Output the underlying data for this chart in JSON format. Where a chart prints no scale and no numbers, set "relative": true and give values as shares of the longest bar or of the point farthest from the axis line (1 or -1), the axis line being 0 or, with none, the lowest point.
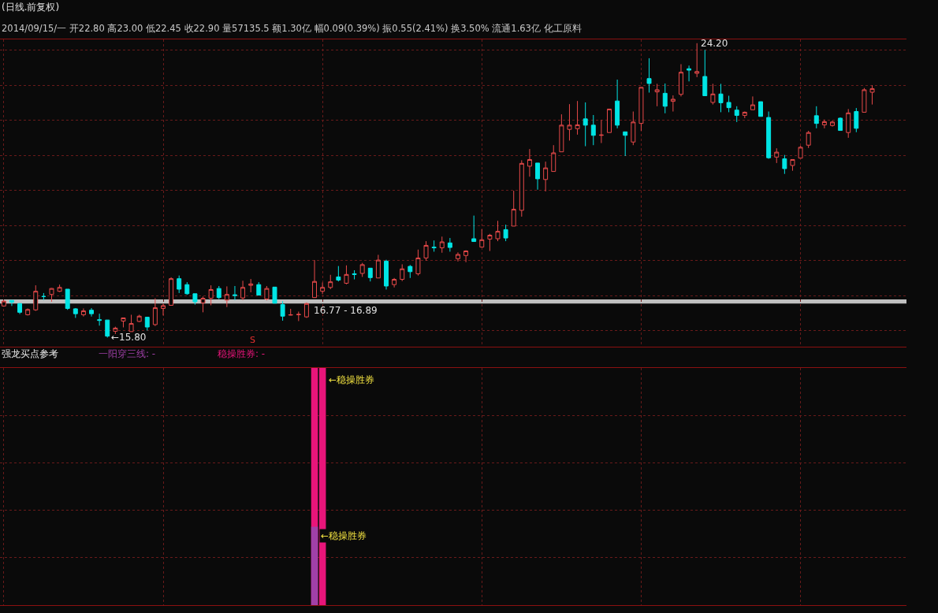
{
  "chart_data": [
    {
      "type": "candlestick",
      "title": "(日线.前复权)",
      "subtitle": "2014/09/15/一 开22.80 高23.00 低22.45 收22.90 量57135.5 额1.30亿 幅0.09(0.39%) 振0.55(2.41%) 换3.50% 流通1.63亿 化工原料",
      "categories": [
        null,
        null,
        null,
        null,
        null,
        null,
        null,
        null,
        null,
        null,
        null,
        null,
        null,
        null,
        null,
        null,
        null,
        null,
        null,
        null,
        null,
        null,
        null,
        null,
        null,
        null,
        null,
        null,
        null,
        null,
        null,
        null,
        null,
        null,
        null,
        null,
        null,
        null,
        null,
        null,
        null,
        null,
        null,
        null,
        null,
        null,
        null,
        null,
        null,
        null,
        null,
        null,
        null,
        null,
        null,
        null,
        null,
        null,
        null,
        null,
        null,
        null,
        null,
        null,
        null,
        null,
        null,
        null,
        null,
        null,
        null,
        null,
        null,
        null,
        null,
        null,
        null,
        null,
        null,
        null,
        null,
        null,
        null,
        null,
        null,
        null,
        null,
        null,
        null,
        null,
        null,
        null,
        null,
        null,
        null,
        null,
        null,
        null,
        null,
        null,
        null,
        null,
        null,
        null,
        null,
        null,
        null,
        null,
        null,
        null
      ],
      "ohlc": [
        [
          16.7,
          16.86,
          16.68,
          16.84
        ],
        [
          16.86,
          16.86,
          16.7,
          16.81
        ],
        [
          16.77,
          16.78,
          16.47,
          16.52
        ],
        [
          16.45,
          16.63,
          16.43,
          16.6
        ],
        [
          16.59,
          17.29,
          16.56,
          17.12
        ],
        [
          16.97,
          17.07,
          16.87,
          16.97
        ],
        [
          17.03,
          17.21,
          16.82,
          17.2
        ],
        [
          17.12,
          17.31,
          17.1,
          17.23
        ],
        [
          17.18,
          17.18,
          16.59,
          16.63
        ],
        [
          16.62,
          16.64,
          16.36,
          16.48
        ],
        [
          16.45,
          16.63,
          16.4,
          16.56
        ],
        [
          16.58,
          16.64,
          16.4,
          16.48
        ],
        [
          16.31,
          16.48,
          16.14,
          16.29
        ],
        [
          16.3,
          16.3,
          15.8,
          15.84
        ],
        [
          15.98,
          16.11,
          15.9,
          16.07
        ],
        [
          16.27,
          16.36,
          16.09,
          16.36
        ],
        [
          15.97,
          16.45,
          15.97,
          16.2
        ],
        [
          16.26,
          16.45,
          16.24,
          16.41
        ],
        [
          16.38,
          16.38,
          16.0,
          16.1
        ],
        [
          16.17,
          16.92,
          16.13,
          16.65
        ],
        [
          16.63,
          16.77,
          16.43,
          16.71
        ],
        [
          16.72,
          17.52,
          16.72,
          17.48
        ],
        [
          17.48,
          17.57,
          17.07,
          17.18
        ],
        [
          17.31,
          17.38,
          17.02,
          17.05
        ],
        [
          17.05,
          17.05,
          16.74,
          16.82
        ],
        [
          16.79,
          16.97,
          16.52,
          16.92
        ],
        [
          16.92,
          17.29,
          16.72,
          17.17
        ],
        [
          17.2,
          17.27,
          16.9,
          16.94
        ],
        [
          16.87,
          17.26,
          16.67,
          17.03
        ],
        [
          17.02,
          17.27,
          16.87,
          17.0
        ],
        [
          16.93,
          17.42,
          16.87,
          17.23
        ],
        [
          17.29,
          17.47,
          17.09,
          17.33
        ],
        [
          17.31,
          17.38,
          17.01,
          17.01
        ],
        [
          16.9,
          17.27,
          16.86,
          17.2
        ],
        [
          17.24,
          17.24,
          16.78,
          16.78
        ],
        [
          16.74,
          16.84,
          16.28,
          16.41
        ],
        [
          16.44,
          16.62,
          16.43,
          16.45
        ],
        [
          16.45,
          16.54,
          16.27,
          16.46
        ],
        [
          16.39,
          16.8,
          16.36,
          16.77
        ],
        [
          16.94,
          18.01,
          16.94,
          17.4
        ],
        [
          17.12,
          17.37,
          17.04,
          17.23
        ],
        [
          17.23,
          17.59,
          17.18,
          17.39
        ],
        [
          17.53,
          17.84,
          17.4,
          17.44
        ],
        [
          17.35,
          17.86,
          17.32,
          17.6
        ],
        [
          17.62,
          17.72,
          17.46,
          17.6
        ],
        [
          17.63,
          17.93,
          17.53,
          17.88
        ],
        [
          17.78,
          17.78,
          17.4,
          17.51
        ],
        [
          17.5,
          18.16,
          17.5,
          18.01
        ],
        [
          17.98,
          18.02,
          17.17,
          17.27
        ],
        [
          17.31,
          17.5,
          17.23,
          17.46
        ],
        [
          17.46,
          17.89,
          17.41,
          17.76
        ],
        [
          17.83,
          17.87,
          17.5,
          17.68
        ],
        [
          17.62,
          18.31,
          17.57,
          18.07
        ],
        [
          18.07,
          18.55,
          17.99,
          18.43
        ],
        [
          18.38,
          18.57,
          18.25,
          18.36
        ],
        [
          18.36,
          18.68,
          18.22,
          18.53
        ],
        [
          18.5,
          18.64,
          18.25,
          18.37
        ],
        [
          18.05,
          18.23,
          17.97,
          18.17
        ],
        [
          18.14,
          18.29,
          17.95,
          18.27
        ],
        [
          18.62,
          19.28,
          18.53,
          18.54
        ],
        [
          18.38,
          18.89,
          18.37,
          18.59
        ],
        [
          18.61,
          18.76,
          18.27,
          18.72
        ],
        [
          18.62,
          19.13,
          18.55,
          18.83
        ],
        [
          18.88,
          19.02,
          18.55,
          18.64
        ],
        [
          18.98,
          19.99,
          18.98,
          19.46
        ],
        [
          19.43,
          20.86,
          19.25,
          20.77
        ],
        [
          20.69,
          21.18,
          20.39,
          20.88
        ],
        [
          20.78,
          20.78,
          20.02,
          20.33
        ],
        [
          20.31,
          20.82,
          19.97,
          20.64
        ],
        [
          20.54,
          21.29,
          20.54,
          21.07
        ],
        [
          21.1,
          22.17,
          21.1,
          21.86
        ],
        [
          21.74,
          22.46,
          21.42,
          21.86
        ],
        [
          21.76,
          22.55,
          21.59,
          21.87
        ],
        [
          22.04,
          22.51,
          21.26,
          21.86
        ],
        [
          21.86,
          22.15,
          21.29,
          21.57
        ],
        [
          21.57,
          22.01,
          21.35,
          21.58
        ],
        [
          21.65,
          22.32,
          21.65,
          22.32
        ],
        [
          22.55,
          23.16,
          21.77,
          21.86
        ],
        [
          21.67,
          21.67,
          20.98,
          21.57
        ],
        [
          21.38,
          22.25,
          21.29,
          21.95
        ],
        [
          21.91,
          22.94,
          21.7,
          22.94
        ],
        [
          23.19,
          23.77,
          22.79,
          23.05
        ],
        [
          22.81,
          23.04,
          22.4,
          22.87
        ],
        [
          22.77,
          23.05,
          22.2,
          22.4
        ],
        [
          22.54,
          22.71,
          22.25,
          22.6
        ],
        [
          22.74,
          23.6,
          22.68,
          23.37
        ],
        [
          23.47,
          23.56,
          23.11,
          23.43
        ],
        [
          23.34,
          24.2,
          23.23,
          23.39
        ],
        [
          23.25,
          24.01,
          22.7,
          22.7
        ],
        [
          22.51,
          23.04,
          22.45,
          22.75
        ],
        [
          22.75,
          23.04,
          22.23,
          22.5
        ],
        [
          22.51,
          22.7,
          22.23,
          22.36
        ],
        [
          22.29,
          22.4,
          21.95,
          22.14
        ],
        [
          22.14,
          22.25,
          22.06,
          22.23
        ],
        [
          22.3,
          22.68,
          22.3,
          22.44
        ],
        [
          22.53,
          22.53,
          22.11,
          22.11
        ],
        [
          22.08,
          22.25,
          20.9,
          20.93
        ],
        [
          20.95,
          21.2,
          20.78,
          21.09
        ],
        [
          20.9,
          21.01,
          20.47,
          20.62
        ],
        [
          20.71,
          20.88,
          20.56,
          20.88
        ],
        [
          20.92,
          21.27,
          20.92,
          21.23
        ],
        [
          21.29,
          21.7,
          21.21,
          21.65
        ],
        [
          22.13,
          22.4,
          21.77,
          21.91
        ],
        [
          21.87,
          22.02,
          21.77,
          21.96
        ],
        [
          21.85,
          21.99,
          21.82,
          21.95
        ],
        [
          22.06,
          22.08,
          21.71,
          21.71
        ],
        [
          21.65,
          22.32,
          21.5,
          22.21
        ],
        [
          22.25,
          22.35,
          21.66,
          21.77
        ],
        [
          22.23,
          22.92,
          22.23,
          22.87
        ],
        [
          22.8,
          23.0,
          22.45,
          22.9
        ]
      ],
      "bands": [
        {
          "axis": "y",
          "from": 16.77,
          "to": 16.89,
          "label": "16.77 - 16.89",
          "color": "#c0c0c0"
        }
      ],
      "annotations": [
        "←15.80",
        "24.20",
        "S"
      ],
      "grid": true
    },
    {
      "type": "bar",
      "relative": true,
      "categories": [
        null,
        null,
        null,
        null,
        null,
        null,
        null,
        null,
        null,
        null,
        null,
        null,
        null,
        null,
        null,
        null,
        null,
        null,
        null,
        null,
        null,
        null,
        null,
        null,
        null,
        null,
        null,
        null,
        null,
        null,
        null,
        null,
        null,
        null,
        null,
        null,
        null,
        null,
        null,
        null,
        null,
        null,
        null,
        null,
        null,
        null,
        null,
        null,
        null,
        null,
        null,
        null,
        null,
        null,
        null,
        null,
        null,
        null,
        null,
        null,
        null,
        null,
        null,
        null,
        null,
        null,
        null,
        null,
        null,
        null,
        null,
        null,
        null,
        null,
        null,
        null,
        null,
        null,
        null,
        null,
        null,
        null,
        null,
        null,
        null,
        null,
        null,
        null,
        null,
        null,
        null,
        null,
        null,
        null,
        null,
        null,
        null,
        null,
        null,
        null,
        null,
        null,
        null,
        null,
        null,
        null,
        null,
        null,
        null,
        null
      ],
      "series": [
        {
          "color": "#a040a8",
          "values": [
            null,
            null,
            null,
            null,
            null,
            null,
            null,
            null,
            null,
            null,
            null,
            null,
            null,
            null,
            null,
            null,
            null,
            null,
            null,
            null,
            null,
            null,
            null,
            null,
            null,
            null,
            null,
            null,
            null,
            null,
            null,
            null,
            null,
            null,
            null,
            null,
            null,
            null,
            null,
            0.33,
            null,
            null,
            null,
            null,
            null,
            null,
            null,
            null,
            null,
            null,
            null,
            null,
            null,
            null,
            null,
            null,
            null,
            null,
            null,
            null,
            null,
            null,
            null,
            null,
            null,
            null,
            null,
            null,
            null,
            null,
            null,
            null,
            null,
            null,
            null,
            null,
            null,
            null,
            null,
            null,
            null,
            null,
            null,
            null,
            null,
            null,
            null,
            null,
            null,
            null,
            null,
            null,
            null,
            null,
            null,
            null,
            null,
            null,
            null,
            null,
            null,
            null,
            null,
            null,
            null,
            null,
            null,
            null,
            null,
            null
          ]
        },
        {
          "color": "#e8157a",
          "values": [
            null,
            null,
            null,
            null,
            null,
            null,
            null,
            null,
            null,
            null,
            null,
            null,
            null,
            null,
            null,
            null,
            null,
            null,
            null,
            null,
            null,
            null,
            null,
            null,
            null,
            null,
            null,
            null,
            null,
            null,
            null,
            null,
            null,
            null,
            null,
            null,
            null,
            null,
            null,
            1,
            1,
            null,
            null,
            null,
            null,
            null,
            null,
            null,
            null,
            null,
            null,
            null,
            null,
            null,
            null,
            null,
            null,
            null,
            null,
            null,
            null,
            null,
            null,
            null,
            null,
            null,
            null,
            null,
            null,
            null,
            null,
            null,
            null,
            null,
            null,
            null,
            null,
            null,
            null,
            null,
            null,
            null,
            null,
            null,
            null,
            null,
            null,
            null,
            null,
            null,
            null,
            null,
            null,
            null,
            null,
            null,
            null,
            null,
            null,
            null,
            null,
            null,
            null,
            null,
            null,
            null,
            null,
            null,
            null,
            null
          ]
        }
      ],
      "annotations": [
        "强龙买点参考",
        "一阳穿三线: -",
        "稳操胜券: -",
        "←稳操胜券",
        "←稳操胜券"
      ],
      "grid": true
    }
  ]
}
